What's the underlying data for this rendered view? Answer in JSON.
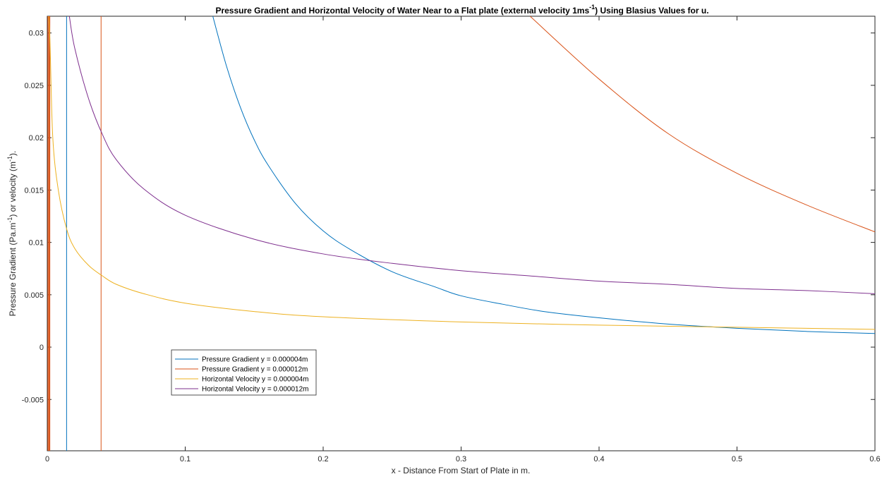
{
  "chart_data": {
    "type": "line",
    "title_main": "Pressure Gradient and Horizontal Velocity of Water  Near to a Flat plate (external velocity 1ms",
    "title_sup": "-1",
    "title_tail": ") Using Blasius Values for u.",
    "xlabel": "x - Distance From Start of Plate in m.",
    "ylabel_a": "Pressure Gradient (Pa.m",
    "ylabel_sup1": "-1",
    "ylabel_b": ") or velocity (m",
    "ylabel_sup2": "-1",
    "ylabel_c": ").",
    "xlim": [
      0,
      0.6
    ],
    "ylim": [
      -0.0099,
      0.0316
    ],
    "xticks": [
      0,
      0.1,
      0.2,
      0.3,
      0.4,
      0.5,
      0.6
    ],
    "xtick_labels": [
      "0",
      "0.1",
      "0.2",
      "0.3",
      "0.4",
      "0.5",
      "0.6"
    ],
    "yticks": [
      -0.005,
      0,
      0.005,
      0.01,
      0.015,
      0.02,
      0.025,
      0.03
    ],
    "ytick_labels": [
      "-0.005",
      "0",
      "0.005",
      "0.01",
      "0.015",
      "0.02",
      "0.025",
      "0.03"
    ],
    "grid": false,
    "legend_position": "lower-left",
    "series": [
      {
        "name": "Pressure Gradient y = 0.000004m",
        "color": "#0072BD",
        "x": [
          0.014,
          0.014,
          0.12,
          0.13,
          0.14,
          0.15,
          0.16,
          0.18,
          0.2,
          0.22,
          0.25,
          0.28,
          0.3,
          0.33,
          0.36,
          0.4,
          0.45,
          0.5,
          0.55,
          0.6
        ],
        "y": [
          -0.0099,
          0.0316,
          0.0316,
          0.0268,
          0.0229,
          0.0198,
          0.0174,
          0.0137,
          0.0111,
          0.0093,
          0.0072,
          0.0058,
          0.0049,
          0.0041,
          0.0034,
          0.0028,
          0.0022,
          0.0018,
          0.0015,
          0.0013
        ]
      },
      {
        "name": "Pressure Gradient y = 0.000012m",
        "color": "#D95319",
        "x": [
          0.039,
          0.039,
          0.35,
          0.4,
          0.45,
          0.5,
          0.55,
          0.6
        ],
        "y": [
          -0.0099,
          0.0316,
          0.0316,
          0.0256,
          0.0204,
          0.0166,
          0.0136,
          0.011
        ]
      },
      {
        "name": "Horizontal Velocity y = 0.000004m",
        "color": "#EDB120",
        "x": [
          0.001,
          0.002,
          0.004,
          0.008,
          0.014,
          0.02,
          0.03,
          0.04,
          0.05,
          0.07,
          0.1,
          0.15,
          0.2,
          0.3,
          0.4,
          0.5,
          0.6
        ],
        "y": [
          0.0316,
          0.029,
          0.02,
          0.015,
          0.0113,
          0.0094,
          0.0078,
          0.0068,
          0.006,
          0.0051,
          0.0042,
          0.0034,
          0.0029,
          0.0024,
          0.0021,
          0.0019,
          0.0017
        ]
      },
      {
        "name": "Horizontal Velocity y = 0.000012m",
        "color": "#7E2F8E",
        "x": [
          0.016,
          0.02,
          0.03,
          0.04,
          0.05,
          0.07,
          0.1,
          0.15,
          0.2,
          0.25,
          0.3,
          0.35,
          0.4,
          0.45,
          0.5,
          0.55,
          0.6
        ],
        "y": [
          0.0316,
          0.0285,
          0.0237,
          0.0203,
          0.0179,
          0.0151,
          0.0126,
          0.0103,
          0.0089,
          0.008,
          0.0073,
          0.0068,
          0.0063,
          0.006,
          0.0056,
          0.0054,
          0.0051
        ]
      }
    ],
    "spikes": [
      {
        "x": 0.0005,
        "color": "#D95319"
      },
      {
        "x": 0.0012,
        "color": "#D95319"
      },
      {
        "x": 0.0018,
        "color": "#D95319"
      }
    ]
  }
}
